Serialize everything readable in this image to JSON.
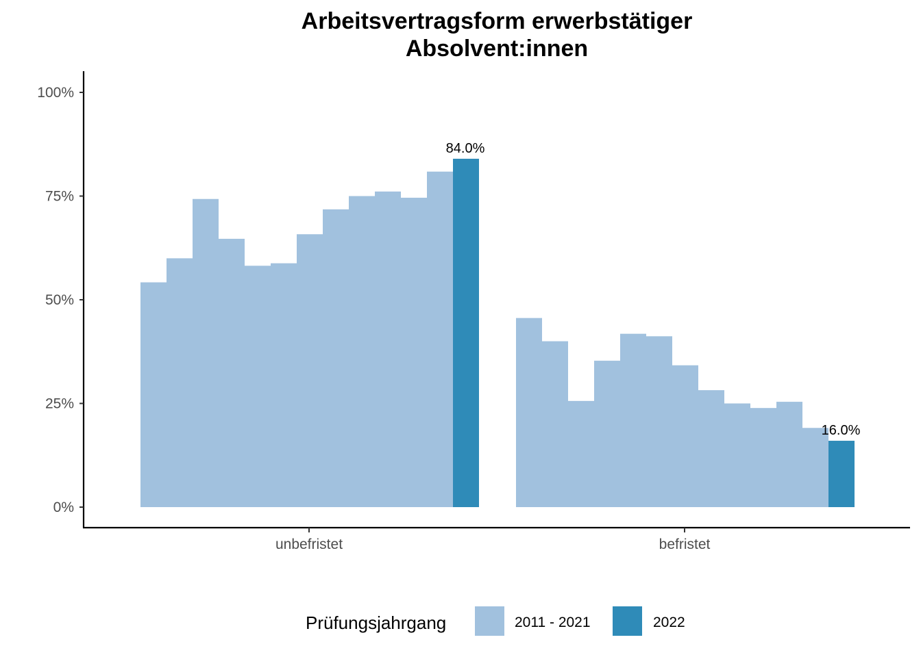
{
  "chart_data": {
    "type": "bar",
    "title_line1": "Arbeitsvertragsform erwerbstätiger",
    "title_line2": "Absolvent:innen",
    "xlabel": "",
    "ylabel": "",
    "ylim": [
      0,
      1
    ],
    "y_ticks": [
      {
        "value": 0,
        "label": "0%"
      },
      {
        "value": 0.25,
        "label": "25%"
      },
      {
        "value": 0.5,
        "label": "50%"
      },
      {
        "value": 0.75,
        "label": "75%"
      },
      {
        "value": 1,
        "label": "100%"
      }
    ],
    "grid": false,
    "legend_placement": "bottom",
    "categories": [
      "unbefristet",
      "befristet"
    ],
    "series": [
      {
        "name": "2011 - 2021",
        "color": "#a1c1de",
        "values_by_category": [
          [
            0.542,
            0.6,
            0.743,
            0.647,
            0.582,
            0.588,
            0.658,
            0.718,
            0.75,
            0.761,
            0.746,
            0.809
          ],
          [
            0.456,
            0.4,
            0.256,
            0.353,
            0.418,
            0.412,
            0.342,
            0.282,
            0.25,
            0.239,
            0.254,
            0.191
          ]
        ]
      },
      {
        "name": "2022",
        "color": "#2f8bb8",
        "values_by_category": [
          [
            0.84
          ],
          [
            0.16
          ]
        ],
        "labels": [
          "84.0%",
          "16.0%"
        ]
      }
    ],
    "legend": {
      "title": "Prüfungsjahrgang",
      "items": [
        {
          "label": "2011 - 2021",
          "color": "#a1c1de"
        },
        {
          "label": "2022",
          "color": "#2f8bb8"
        }
      ]
    }
  }
}
